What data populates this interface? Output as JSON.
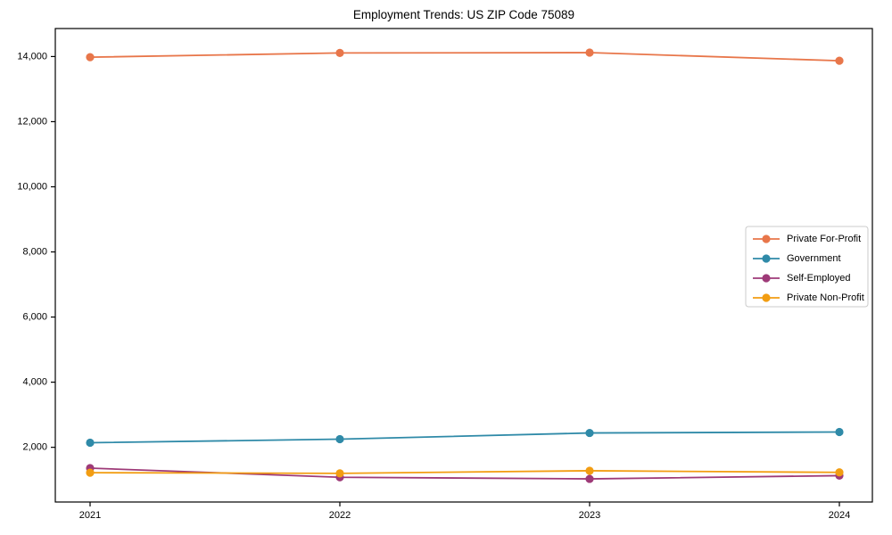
{
  "chart_data": {
    "type": "line",
    "title": "Employment Trends: US ZIP Code 75089",
    "xlabel": "",
    "ylabel": "",
    "categories": [
      "2021",
      "2022",
      "2023",
      "2024"
    ],
    "series": [
      {
        "name": "Private For-Profit",
        "color": "#e8764a",
        "values": [
          13980,
          14110,
          14120,
          13870
        ]
      },
      {
        "name": "Government",
        "color": "#2f8aa8",
        "values": [
          2140,
          2250,
          2440,
          2470
        ]
      },
      {
        "name": "Self-Employed",
        "color": "#9e3a78",
        "values": [
          1360,
          1080,
          1030,
          1130
        ]
      },
      {
        "name": "Private Non-Profit",
        "color": "#f29d12",
        "values": [
          1220,
          1200,
          1280,
          1230
        ]
      }
    ],
    "ylim": [
      320,
      14860
    ],
    "yticks": [
      2000,
      4000,
      6000,
      8000,
      10000,
      12000,
      14000
    ],
    "ytick_labels": [
      "2,000",
      "4,000",
      "6,000",
      "8,000",
      "10,000",
      "12,000",
      "14,000"
    ],
    "grid": false,
    "legend_position": "right-middle",
    "axis_color": "#000000",
    "legend_border_color": "#cbcbcb",
    "background": "#ffffff"
  }
}
